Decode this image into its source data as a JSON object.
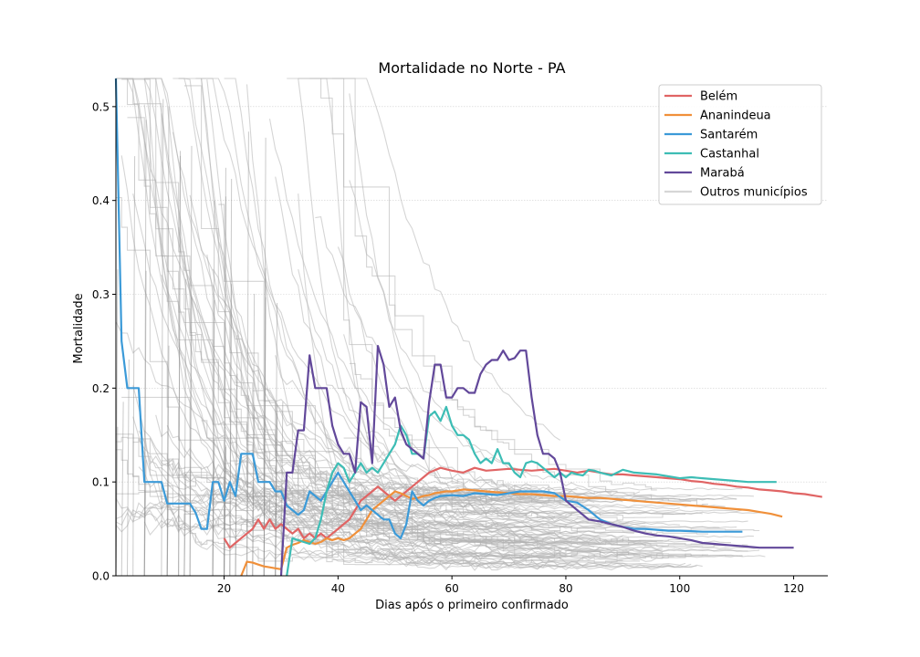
{
  "chart_data": {
    "type": "line",
    "title": "Mortalidade no Norte - PA",
    "xlabel": "Dias após o primeiro confirmado",
    "ylabel": "Mortalidade",
    "xlim": [
      1,
      126
    ],
    "ylim": [
      0,
      0.53
    ],
    "xticks": [
      20,
      40,
      60,
      80,
      100,
      120
    ],
    "yticks": [
      0.0,
      0.1,
      0.2,
      0.3,
      0.4,
      0.5
    ],
    "grid": "horizontal",
    "legend_position": "top-right",
    "series": [
      {
        "name": "Belém",
        "color": "#e06464",
        "x": [
          20,
          21,
          22,
          24,
          25,
          26,
          27,
          28,
          29,
          30,
          31,
          32,
          33,
          34,
          35,
          36,
          37,
          38,
          39,
          40,
          41,
          42,
          43,
          44,
          45,
          46,
          47,
          48,
          49,
          50,
          51,
          52,
          53,
          54,
          55,
          56,
          58,
          60,
          62,
          64,
          66,
          68,
          70,
          72,
          74,
          76,
          78,
          80,
          82,
          84,
          86,
          88,
          90,
          92,
          94,
          96,
          98,
          100,
          102,
          104,
          106,
          108,
          110,
          112,
          114,
          116,
          118,
          120,
          122,
          124,
          125
        ],
        "y": [
          0.04,
          0.03,
          0.035,
          0.045,
          0.05,
          0.06,
          0.05,
          0.06,
          0.05,
          0.055,
          0.05,
          0.045,
          0.05,
          0.04,
          0.045,
          0.04,
          0.045,
          0.04,
          0.045,
          0.05,
          0.055,
          0.06,
          0.07,
          0.08,
          0.085,
          0.09,
          0.095,
          0.09,
          0.085,
          0.08,
          0.085,
          0.09,
          0.095,
          0.1,
          0.105,
          0.11,
          0.115,
          0.112,
          0.11,
          0.115,
          0.112,
          0.113,
          0.114,
          0.113,
          0.112,
          0.113,
          0.114,
          0.112,
          0.11,
          0.112,
          0.11,
          0.108,
          0.108,
          0.107,
          0.106,
          0.105,
          0.104,
          0.103,
          0.101,
          0.1,
          0.098,
          0.097,
          0.095,
          0.094,
          0.092,
          0.091,
          0.09,
          0.088,
          0.087,
          0.085,
          0.084
        ]
      },
      {
        "name": "Ananindeua",
        "color": "#f0903a",
        "x": [
          23,
          24,
          25,
          26,
          27,
          28,
          29,
          30,
          31,
          32,
          33,
          34,
          35,
          36,
          37,
          38,
          39,
          40,
          41,
          42,
          43,
          44,
          45,
          46,
          47,
          48,
          49,
          50,
          51,
          52,
          53,
          54,
          55,
          56,
          57,
          58,
          59,
          60,
          62,
          64,
          66,
          68,
          70,
          72,
          74,
          76,
          78,
          80,
          82,
          84,
          86,
          88,
          90,
          92,
          94,
          96,
          98,
          100,
          102,
          104,
          106,
          108,
          110,
          112,
          114,
          116,
          118
        ],
        "y": [
          0.0,
          0.015,
          0.014,
          0.012,
          0.01,
          0.009,
          0.008,
          0.007,
          0.03,
          0.033,
          0.035,
          0.038,
          0.036,
          0.034,
          0.036,
          0.04,
          0.038,
          0.04,
          0.038,
          0.04,
          0.045,
          0.05,
          0.06,
          0.07,
          0.075,
          0.08,
          0.085,
          0.09,
          0.088,
          0.085,
          0.082,
          0.083,
          0.085,
          0.086,
          0.088,
          0.089,
          0.09,
          0.09,
          0.092,
          0.091,
          0.09,
          0.089,
          0.088,
          0.087,
          0.087,
          0.086,
          0.085,
          0.085,
          0.084,
          0.083,
          0.083,
          0.082,
          0.081,
          0.08,
          0.079,
          0.078,
          0.077,
          0.076,
          0.075,
          0.074,
          0.073,
          0.072,
          0.071,
          0.07,
          0.068,
          0.066,
          0.063
        ]
      },
      {
        "name": "Santarém",
        "color": "#3b9ad8",
        "x": [
          1,
          2,
          3,
          4,
          5,
          6,
          7,
          8,
          9,
          10,
          11,
          12,
          13,
          14,
          15,
          16,
          17,
          18,
          19,
          20,
          21,
          22,
          23,
          24,
          25,
          26,
          27,
          28,
          29,
          30,
          31,
          32,
          33,
          34,
          35,
          36,
          37,
          38,
          39,
          40,
          41,
          42,
          43,
          44,
          45,
          46,
          47,
          48,
          49,
          50,
          51,
          52,
          53,
          54,
          55,
          56,
          57,
          58,
          60,
          62,
          64,
          66,
          68,
          70,
          72,
          74,
          76,
          78,
          80,
          82,
          84,
          86,
          88,
          90,
          92,
          94,
          96,
          98,
          100,
          104,
          108,
          111
        ],
        "y": [
          0.53,
          0.25,
          0.2,
          0.2,
          0.2,
          0.1,
          0.1,
          0.1,
          0.1,
          0.077,
          0.077,
          0.077,
          0.077,
          0.077,
          0.067,
          0.05,
          0.05,
          0.1,
          0.1,
          0.08,
          0.1,
          0.085,
          0.13,
          0.13,
          0.13,
          0.1,
          0.1,
          0.1,
          0.09,
          0.09,
          0.075,
          0.07,
          0.065,
          0.07,
          0.09,
          0.085,
          0.08,
          0.09,
          0.1,
          0.11,
          0.1,
          0.09,
          0.08,
          0.07,
          0.075,
          0.07,
          0.065,
          0.06,
          0.06,
          0.045,
          0.04,
          0.055,
          0.09,
          0.08,
          0.075,
          0.08,
          0.083,
          0.085,
          0.086,
          0.085,
          0.088,
          0.087,
          0.086,
          0.088,
          0.09,
          0.09,
          0.09,
          0.088,
          0.08,
          0.078,
          0.07,
          0.06,
          0.055,
          0.052,
          0.05,
          0.05,
          0.049,
          0.048,
          0.048,
          0.047,
          0.047,
          0.047
        ]
      },
      {
        "name": "Castanhal",
        "color": "#3dbdb5",
        "x": [
          31,
          32,
          33,
          34,
          35,
          36,
          37,
          38,
          39,
          40,
          41,
          42,
          43,
          44,
          45,
          46,
          47,
          48,
          49,
          50,
          51,
          52,
          53,
          54,
          55,
          56,
          57,
          58,
          59,
          60,
          61,
          62,
          63,
          64,
          65,
          66,
          67,
          68,
          69,
          70,
          71,
          72,
          73,
          74,
          75,
          76,
          77,
          78,
          79,
          80,
          81,
          82,
          83,
          84,
          85,
          86,
          88,
          90,
          92,
          94,
          96,
          98,
          100,
          102,
          104,
          106,
          108,
          110,
          112,
          114,
          116,
          117
        ],
        "y": [
          0.0,
          0.04,
          0.038,
          0.036,
          0.034,
          0.04,
          0.06,
          0.09,
          0.11,
          0.12,
          0.115,
          0.1,
          0.11,
          0.12,
          0.11,
          0.115,
          0.11,
          0.12,
          0.13,
          0.14,
          0.16,
          0.15,
          0.13,
          0.13,
          0.125,
          0.17,
          0.175,
          0.165,
          0.18,
          0.16,
          0.15,
          0.15,
          0.145,
          0.13,
          0.12,
          0.125,
          0.12,
          0.135,
          0.12,
          0.12,
          0.11,
          0.105,
          0.12,
          0.122,
          0.12,
          0.115,
          0.11,
          0.105,
          0.11,
          0.105,
          0.11,
          0.108,
          0.107,
          0.113,
          0.112,
          0.11,
          0.107,
          0.113,
          0.11,
          0.109,
          0.108,
          0.106,
          0.104,
          0.105,
          0.104,
          0.103,
          0.102,
          0.101,
          0.1,
          0.1,
          0.1,
          0.1
        ]
      },
      {
        "name": "Marabá",
        "color": "#62489a",
        "x": [
          30,
          31,
          32,
          33,
          34,
          35,
          36,
          37,
          38,
          39,
          40,
          41,
          42,
          43,
          44,
          45,
          46,
          47,
          48,
          49,
          50,
          51,
          52,
          53,
          54,
          55,
          56,
          57,
          58,
          59,
          60,
          61,
          62,
          63,
          64,
          65,
          66,
          67,
          68,
          69,
          70,
          71,
          72,
          73,
          74,
          75,
          76,
          77,
          78,
          79,
          80,
          81,
          82,
          84,
          86,
          88,
          90,
          92,
          94,
          96,
          98,
          100,
          102,
          104,
          106,
          108,
          110,
          112,
          114,
          116,
          118,
          120
        ],
        "y": [
          0.0,
          0.11,
          0.11,
          0.155,
          0.155,
          0.235,
          0.2,
          0.2,
          0.2,
          0.16,
          0.14,
          0.13,
          0.13,
          0.11,
          0.185,
          0.18,
          0.12,
          0.245,
          0.225,
          0.18,
          0.19,
          0.155,
          0.14,
          0.135,
          0.13,
          0.125,
          0.185,
          0.225,
          0.225,
          0.19,
          0.19,
          0.2,
          0.2,
          0.195,
          0.195,
          0.215,
          0.225,
          0.23,
          0.23,
          0.24,
          0.23,
          0.232,
          0.24,
          0.24,
          0.19,
          0.15,
          0.13,
          0.13,
          0.125,
          0.11,
          0.08,
          0.075,
          0.07,
          0.06,
          0.058,
          0.055,
          0.052,
          0.048,
          0.045,
          0.043,
          0.042,
          0.04,
          0.038,
          0.035,
          0.034,
          0.033,
          0.032,
          0.031,
          0.03,
          0.03,
          0.03,
          0.03
        ]
      }
    ],
    "background_series": {
      "name": "Outros municípios",
      "color": "#b3b3b3"
    }
  }
}
